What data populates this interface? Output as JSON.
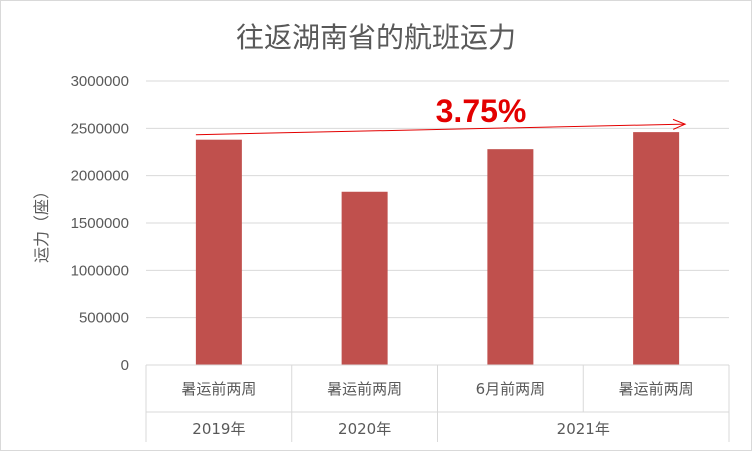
{
  "colors": {
    "bar": "#c0504d",
    "trend": "#e30000",
    "grid": "#d9d9d9",
    "text": "#595959"
  },
  "chart_data": {
    "type": "bar",
    "title": "往返湖南省的航班运力",
    "ylabel": "运力（座）",
    "xlabel": "",
    "ylim": [
      0,
      3000000
    ],
    "yticks": [
      0,
      500000,
      1000000,
      1500000,
      2000000,
      2500000,
      3000000
    ],
    "grid": true,
    "categories": [
      "暑运前两周",
      "暑运前两周",
      "6月前两周",
      "暑运前两周"
    ],
    "groups": [
      {
        "label": "2019年",
        "span": 1
      },
      {
        "label": "2020年",
        "span": 1
      },
      {
        "label": "2021年",
        "span": 2
      }
    ],
    "values": [
      2380000,
      1830000,
      2280000,
      2460000
    ],
    "annotation": "3.75%"
  }
}
